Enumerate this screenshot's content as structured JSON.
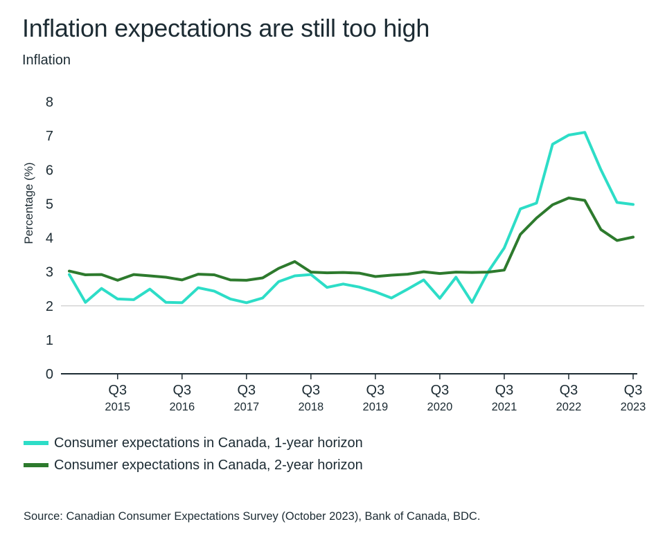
{
  "title": "Inflation expectations are still too high",
  "subtitle": "Inflation",
  "source": "Source: Canadian Consumer Expectations Survey (October 2023), Bank of Canada, BDC.",
  "colors": {
    "series1": "#2dddc7",
    "series2": "#2d7a2d",
    "grid": "#d4d4d4",
    "axis": "#1c2b33"
  },
  "chart_data": {
    "type": "line",
    "ylabel": "Percentage (%)",
    "xlabel": "",
    "ylim": [
      0,
      8
    ],
    "yticks": [
      0,
      1,
      2,
      3,
      4,
      5,
      6,
      7,
      8
    ],
    "grid": "horizontal line at 2 only",
    "legend_position": "bottom-left",
    "x": [
      "2014 Q4",
      "2015 Q1",
      "2015 Q2",
      "2015 Q3",
      "2015 Q4",
      "2016 Q1",
      "2016 Q2",
      "2016 Q3",
      "2016 Q4",
      "2017 Q1",
      "2017 Q2",
      "2017 Q3",
      "2017 Q4",
      "2018 Q1",
      "2018 Q2",
      "2018 Q3",
      "2018 Q4",
      "2019 Q1",
      "2019 Q2",
      "2019 Q3",
      "2019 Q4",
      "2020 Q1",
      "2020 Q2",
      "2020 Q3",
      "2020 Q4",
      "2021 Q1",
      "2021 Q2",
      "2021 Q3",
      "2021 Q4",
      "2022 Q1",
      "2022 Q2",
      "2022 Q3",
      "2022 Q4",
      "2023 Q1",
      "2023 Q2",
      "2023 Q3"
    ],
    "xticks": [
      {
        "x": "2015 Q3",
        "quarter": "Q3",
        "year": "2015"
      },
      {
        "x": "2016 Q3",
        "quarter": "Q3",
        "year": "2016"
      },
      {
        "x": "2017 Q3",
        "quarter": "Q3",
        "year": "2017"
      },
      {
        "x": "2018 Q3",
        "quarter": "Q3",
        "year": "2018"
      },
      {
        "x": "2019 Q3",
        "quarter": "Q3",
        "year": "2019"
      },
      {
        "x": "2020 Q3",
        "quarter": "Q3",
        "year": "2020"
      },
      {
        "x": "2021 Q3",
        "quarter": "Q3",
        "year": "2021"
      },
      {
        "x": "2022 Q3",
        "quarter": "Q3",
        "year": "2022"
      },
      {
        "x": "2023 Q3",
        "quarter": "Q3",
        "year": "2023"
      }
    ],
    "series": [
      {
        "name": "Consumer expectations in Canada, 1-year horizon",
        "color": "#2dddc7",
        "values": [
          2.92,
          2.1,
          2.51,
          2.2,
          2.18,
          2.49,
          2.1,
          2.09,
          2.53,
          2.43,
          2.2,
          2.09,
          2.23,
          2.71,
          2.88,
          2.92,
          2.54,
          2.64,
          2.55,
          2.41,
          2.23,
          2.49,
          2.76,
          2.22,
          2.84,
          2.1,
          3.0,
          3.7,
          4.85,
          5.02,
          6.75,
          7.02,
          7.1,
          6.0,
          5.04,
          4.98
        ]
      },
      {
        "name": "Consumer expectations in Canada, 2-year horizon",
        "color": "#2d7a2d",
        "values": [
          3.02,
          2.91,
          2.92,
          2.75,
          2.92,
          2.88,
          2.84,
          2.76,
          2.93,
          2.91,
          2.76,
          2.75,
          2.82,
          3.1,
          3.3,
          2.99,
          2.97,
          2.98,
          2.96,
          2.86,
          2.9,
          2.93,
          3.0,
          2.95,
          2.99,
          2.98,
          2.99,
          3.05,
          4.1,
          4.58,
          4.97,
          5.17,
          5.1,
          4.24,
          3.92,
          4.02
        ]
      }
    ]
  }
}
